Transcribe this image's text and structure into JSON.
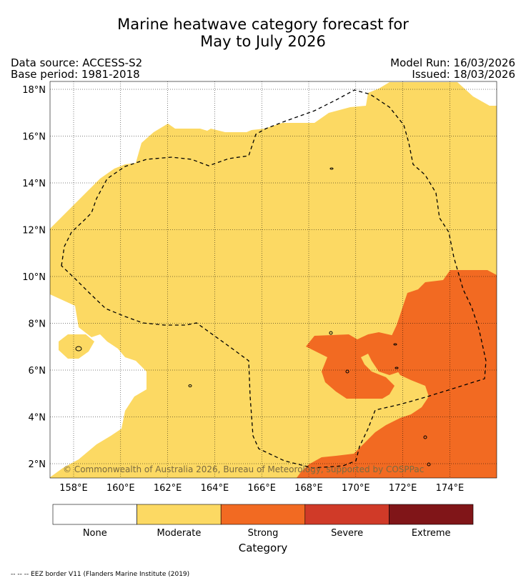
{
  "title_line1": "Marine heatwave category forecast for",
  "title_line2": "May to July 2026",
  "meta": {
    "data_source": "Data source: ACCESS-S2",
    "base_period": "Base period: 1981-2018",
    "model_run": "Model Run: 16/03/2026",
    "issued": "Issued: 18/03/2026"
  },
  "map": {
    "lon_labels": [
      "158°E",
      "160°E",
      "162°E",
      "164°E",
      "166°E",
      "168°E",
      "170°E",
      "172°E",
      "174°E"
    ],
    "lat_labels": [
      "2°N",
      "4°N",
      "6°N",
      "8°N",
      "10°N",
      "12°N",
      "14°N",
      "16°N",
      "18°N"
    ],
    "copyright": "© Commonwealth of Australia 2026, Bureau of Meteorology, supported by COSPPac"
  },
  "legend": {
    "title": "Category",
    "categories": [
      {
        "label": "None",
        "color": "#ffffff"
      },
      {
        "label": "Moderate",
        "color": "#fcd963"
      },
      {
        "label": "Strong",
        "color": "#f26a22"
      },
      {
        "label": "Severe",
        "color": "#d03a28"
      },
      {
        "label": "Extreme",
        "color": "#801518"
      }
    ]
  },
  "footnote": "-- -- -- EEZ border V11 (Flanders Marine Institute (2019)"
}
